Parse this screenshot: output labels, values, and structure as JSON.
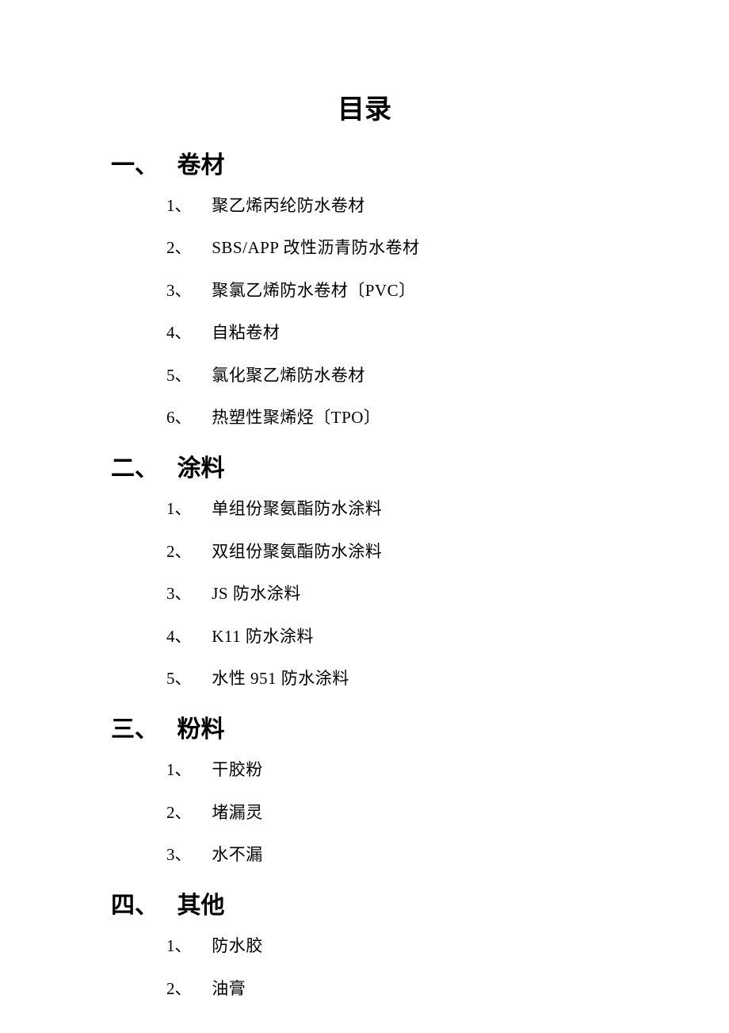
{
  "page_title": "目录",
  "sections": [
    {
      "number": "一、",
      "title": "卷材",
      "items": [
        {
          "number": "1、",
          "text": "聚乙烯丙纶防水卷材"
        },
        {
          "number": "2、",
          "text": "SBS/APP 改性沥青防水卷材"
        },
        {
          "number": "3、",
          "text": "聚氯乙烯防水卷材〔PVC〕"
        },
        {
          "number": "4、",
          "text": "自粘卷材"
        },
        {
          "number": "5、",
          "text": "氯化聚乙烯防水卷材"
        },
        {
          "number": "6、",
          "text": "热塑性聚烯烃〔TPO〕"
        }
      ]
    },
    {
      "number": "二、",
      "title": "涂料",
      "items": [
        {
          "number": "1、",
          "text": "单组份聚氨酯防水涂料"
        },
        {
          "number": "2、",
          "text": "双组份聚氨酯防水涂料"
        },
        {
          "number": "3、",
          "text": "JS 防水涂料"
        },
        {
          "number": "4、",
          "text": "K11 防水涂料"
        },
        {
          "number": "5、",
          "text": "水性 951 防水涂料"
        }
      ]
    },
    {
      "number": "三、",
      "title": "粉料",
      "items": [
        {
          "number": "1、",
          "text": "干胶粉"
        },
        {
          "number": "2、",
          "text": "堵漏灵"
        },
        {
          "number": "3、",
          "text": "水不漏"
        }
      ]
    },
    {
      "number": "四、",
      "title": "其他",
      "items": [
        {
          "number": "1、",
          "text": "防水胶"
        },
        {
          "number": "2、",
          "text": "油膏"
        }
      ]
    }
  ],
  "style": {
    "background_color": "#ffffff",
    "text_color": "#000000",
    "page_title_fontsize": 34,
    "section_header_fontsize": 30,
    "item_fontsize": 21,
    "font_family": "SimSun"
  }
}
